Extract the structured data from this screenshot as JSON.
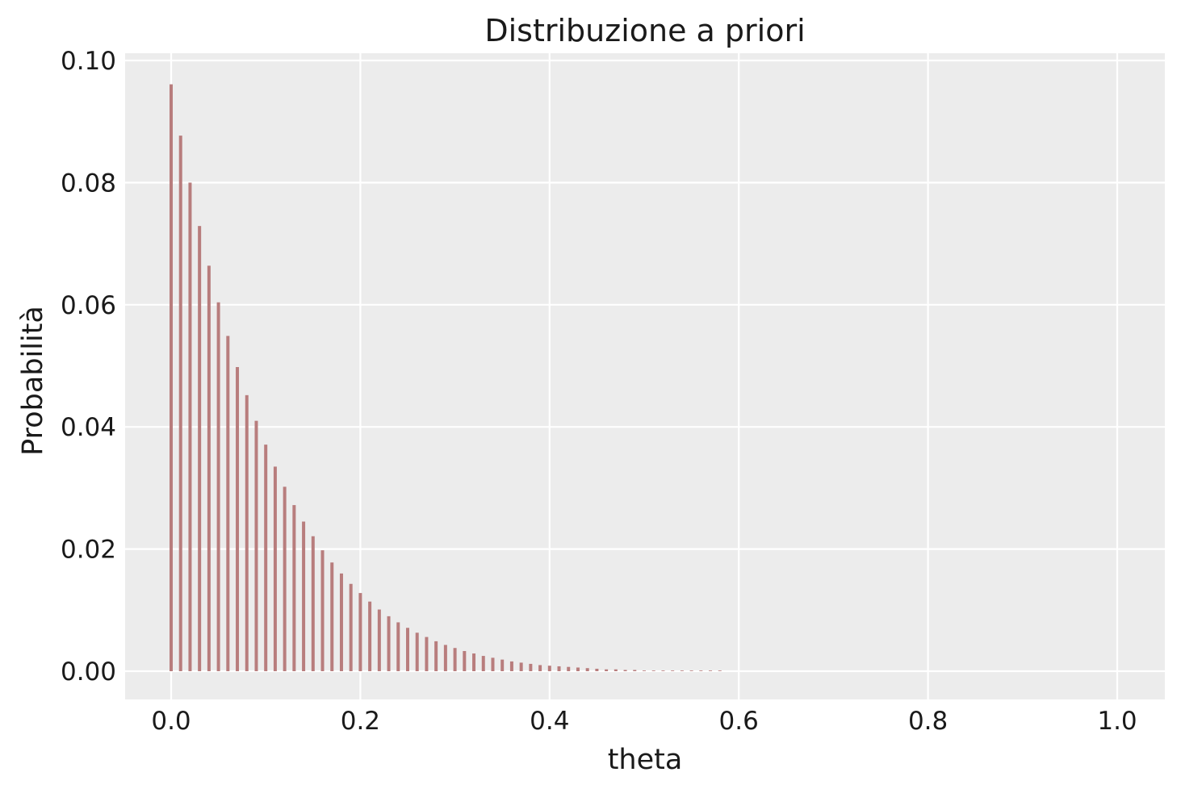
{
  "chart_data": {
    "type": "bar",
    "title": "Distribuzione a priori",
    "xlabel": "theta",
    "ylabel": "Probabilità",
    "xlim": [
      -0.05,
      1.05
    ],
    "ylim": [
      -0.0048,
      0.1005
    ],
    "xticks": [
      0.0,
      0.2,
      0.4,
      0.6,
      0.8,
      1.0
    ],
    "xtick_labels": [
      "0.0",
      "0.2",
      "0.4",
      "0.6",
      "0.8",
      "1.0"
    ],
    "yticks": [
      0.0,
      0.02,
      0.04,
      0.06,
      0.08,
      0.1
    ],
    "ytick_labels": [
      "0.00",
      "0.02",
      "0.04",
      "0.06",
      "0.08",
      "0.10"
    ],
    "grid": true,
    "colors": {
      "bar": "#b87d7d",
      "background": "#ececec",
      "grid": "#ffffff"
    },
    "x": [
      0.0,
      0.01,
      0.02,
      0.03,
      0.04,
      0.05,
      0.06,
      0.07,
      0.08,
      0.09,
      0.1,
      0.11,
      0.12,
      0.13,
      0.14,
      0.15,
      0.16,
      0.17,
      0.18,
      0.19,
      0.2,
      0.21,
      0.22,
      0.23,
      0.24,
      0.25,
      0.26,
      0.27,
      0.28,
      0.29,
      0.3,
      0.31,
      0.32,
      0.33,
      0.34,
      0.35,
      0.36,
      0.37,
      0.38,
      0.39,
      0.4,
      0.41,
      0.42,
      0.43,
      0.44,
      0.45,
      0.46,
      0.47,
      0.48,
      0.49,
      0.5,
      0.51,
      0.52,
      0.53,
      0.54,
      0.55,
      0.56,
      0.57,
      0.58
    ],
    "values": [
      0.0961,
      0.0877,
      0.08,
      0.0729,
      0.0664,
      0.0604,
      0.0549,
      0.0498,
      0.0452,
      0.041,
      0.0371,
      0.0335,
      0.0302,
      0.0272,
      0.0245,
      0.0221,
      0.0198,
      0.0178,
      0.016,
      0.0143,
      0.0128,
      0.0114,
      0.0101,
      0.009,
      0.008,
      0.0071,
      0.0063,
      0.0056,
      0.0049,
      0.0043,
      0.0038,
      0.0033,
      0.0029,
      0.0025,
      0.0022,
      0.0019,
      0.0016,
      0.0014,
      0.0012,
      0.001,
      0.0009,
      0.0008,
      0.0007,
      0.0006,
      0.0005,
      0.0004,
      0.0003,
      0.0003,
      0.0002,
      0.0002,
      0.0001,
      0.0001,
      0.0001,
      0.0001,
      0.0001,
      0.0001,
      0.0,
      0.0,
      0.0
    ]
  }
}
